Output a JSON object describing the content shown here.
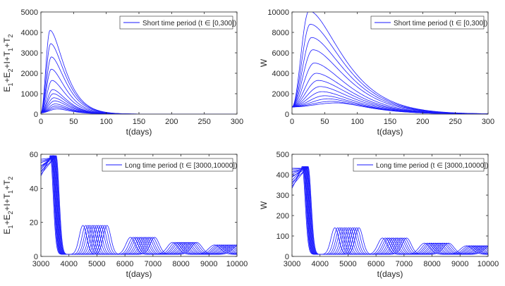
{
  "chart_data": [
    {
      "type": "line",
      "panel": "top-left",
      "xlabel": "t(days)",
      "ylabel_parts": [
        "E",
        "1",
        "+E",
        "2",
        "+I+T",
        "1",
        "+T",
        "2"
      ],
      "xlim": [
        0,
        300
      ],
      "ylim": [
        0,
        5000
      ],
      "xticks": [
        0,
        50,
        100,
        150,
        200,
        250,
        300
      ],
      "yticks": [
        0,
        1000,
        2000,
        3000,
        4000,
        5000
      ],
      "legend": {
        "label": "Short time period (t ∈ [0,300])",
        "location": "top-right"
      },
      "curve_model": "pulse",
      "series_description": "family of 13 curves",
      "peaks": [
        4100,
        3450,
        2800,
        2200,
        1650,
        1200,
        1000,
        800,
        650,
        500,
        400,
        320,
        250
      ],
      "peak_t": [
        14,
        15,
        16,
        16,
        17,
        18,
        19,
        20,
        21,
        22,
        23,
        24,
        25
      ],
      "initial": 60,
      "tail_scale": 15
    },
    {
      "type": "line",
      "panel": "top-right",
      "xlabel": "t(days)",
      "ylabel_parts": [
        "W"
      ],
      "xlim": [
        0,
        300
      ],
      "ylim": [
        0,
        10000
      ],
      "xticks": [
        0,
        50,
        100,
        150,
        200,
        250,
        300
      ],
      "yticks": [
        0,
        2000,
        4000,
        6000,
        8000,
        10000
      ],
      "legend": {
        "label": "Short time period (t ∈ [0,300])",
        "location": "top-right"
      },
      "curve_model": "pulse",
      "series_description": "family of 13 curves",
      "peaks": [
        10100,
        8800,
        7500,
        6300,
        5000,
        4000,
        3300,
        2700,
        2200,
        1800,
        1500,
        1250,
        1100
      ],
      "peak_t": [
        26,
        28,
        30,
        32,
        34,
        37,
        40,
        43,
        46,
        50,
        55,
        60,
        68
      ],
      "initial": 700,
      "tail_scale": 35
    },
    {
      "type": "line",
      "panel": "bottom-left",
      "xlabel": "t(days)",
      "ylabel_parts": [
        "E",
        "1",
        "+E",
        "2",
        "+I+T",
        "1",
        "+T",
        "2"
      ],
      "xlim": [
        3000,
        10000
      ],
      "ylim": [
        0,
        60
      ],
      "xticks": [
        3000,
        4000,
        5000,
        6000,
        7000,
        8000,
        9000,
        10000
      ],
      "yticks": [
        0,
        20,
        40,
        60
      ],
      "legend": {
        "label": "Long time period (t ∈ [3000,10000])",
        "location": "top-right"
      },
      "curve_model": "oscillation",
      "series_description": "family of 12 damped oscillating curves",
      "offsets": [
        0,
        100,
        180,
        250,
        330,
        400,
        480,
        550,
        630,
        700,
        780,
        860
      ],
      "waves": [
        {
          "t": 3330,
          "a": 58,
          "w": 150
        },
        {
          "t": 4500,
          "a": 17,
          "w": 190
        },
        {
          "t": 6200,
          "a": 10,
          "w": 230
        },
        {
          "t": 7700,
          "a": 7,
          "w": 270
        },
        {
          "t": 9200,
          "a": 5.5,
          "w": 300
        }
      ],
      "initial_values": [
        47,
        49,
        51,
        52,
        53,
        55,
        56,
        57,
        48,
        50,
        53,
        55
      ],
      "baseline": 1.2
    },
    {
      "type": "line",
      "panel": "bottom-right",
      "xlabel": "t(days)",
      "ylabel_parts": [
        "W"
      ],
      "xlim": [
        3000,
        10000
      ],
      "ylim": [
        0,
        500
      ],
      "xticks": [
        3000,
        4000,
        5000,
        6000,
        7000,
        8000,
        9000,
        10000
      ],
      "yticks": [
        0,
        100,
        200,
        300,
        400,
        500
      ],
      "legend": {
        "label": "Long time period (t ∈ [3000,10000])",
        "location": "top-right"
      },
      "curve_model": "oscillation",
      "series_description": "family of 12 damped oscillating curves",
      "offsets": [
        0,
        100,
        180,
        250,
        330,
        400,
        480,
        550,
        630,
        700,
        780,
        860
      ],
      "waves": [
        {
          "t": 3360,
          "a": 430,
          "w": 155
        },
        {
          "t": 4530,
          "a": 130,
          "w": 195
        },
        {
          "t": 6230,
          "a": 80,
          "w": 235
        },
        {
          "t": 7730,
          "a": 55,
          "w": 275
        },
        {
          "t": 9230,
          "a": 42,
          "w": 305
        }
      ],
      "initial_values": [
        330,
        350,
        370,
        385,
        400,
        415,
        425,
        430,
        340,
        360,
        390,
        410
      ],
      "baseline": 10
    }
  ]
}
